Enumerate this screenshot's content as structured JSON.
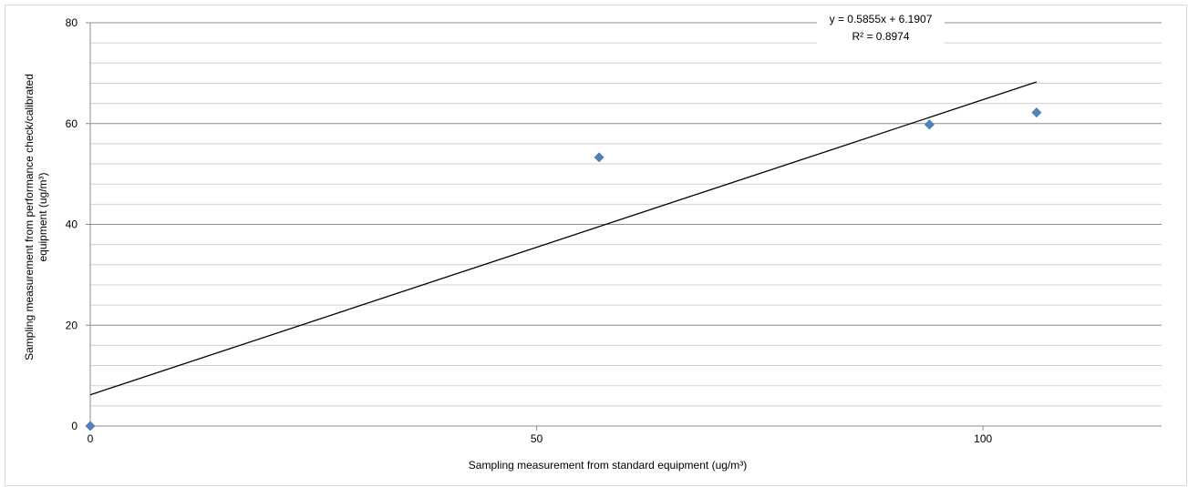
{
  "chart_data": {
    "type": "scatter",
    "x_title": "Sampling measurement from standard equipment  (ug/m³)",
    "y_title_lines": [
      "Sampling measurement from performance check/calibrated",
      "equipment  (ug/m³)"
    ],
    "xlim": [
      0,
      120
    ],
    "ylim": [
      0,
      80
    ],
    "x_ticks": [
      0,
      50,
      100
    ],
    "y_ticks": [
      0,
      20,
      40,
      60,
      80
    ],
    "y_minor_step": 4,
    "grid": true,
    "series": [
      {
        "x": [
          0,
          57,
          94,
          106
        ],
        "y": [
          0,
          53.3,
          59.8,
          62.2
        ],
        "color": "#4f81bd",
        "marker": "diamond"
      }
    ],
    "trendline": {
      "type": "linear",
      "slope": 0.5855,
      "intercept": 6.1907,
      "x_range": [
        0,
        106
      ],
      "color": "#000000",
      "equation_label": "y = 0.5855x + 6.1907",
      "r2_label": "R² = 0.8974"
    }
  }
}
